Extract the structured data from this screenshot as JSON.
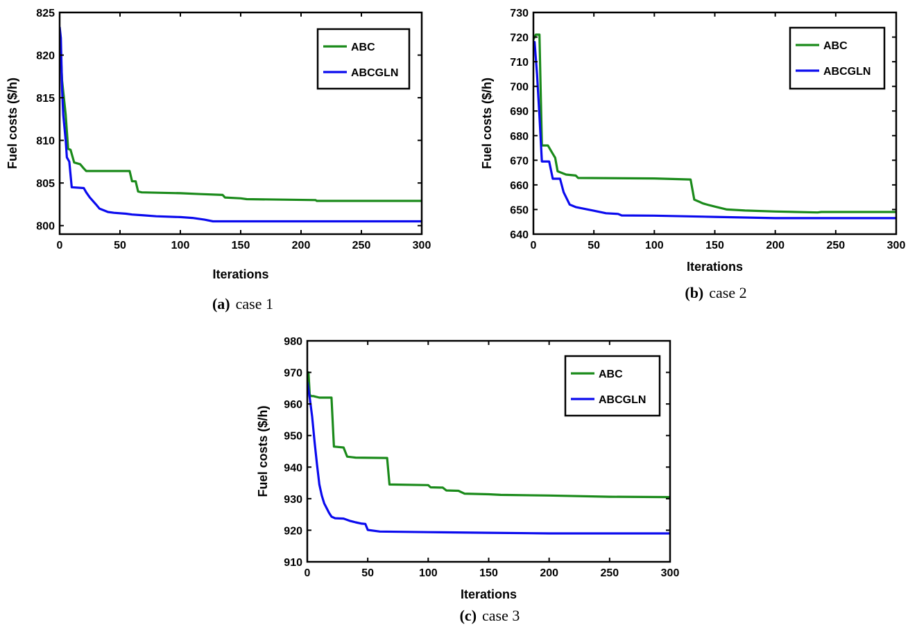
{
  "colors": {
    "abc": "#1a8a1a",
    "abcgln": "#0a0aee"
  },
  "chart_data": [
    {
      "type": "line",
      "caption": {
        "tag": "(a)",
        "text": "case 1"
      },
      "xlabel": "Iterations",
      "ylabel": "Fuel costs ($/h)",
      "xlim": [
        0,
        300
      ],
      "ylim": [
        799,
        825
      ],
      "xticks": [
        0,
        50,
        100,
        150,
        200,
        250,
        300
      ],
      "yticks": [
        800,
        805,
        810,
        815,
        820,
        825
      ],
      "legend": "top-right",
      "series": [
        {
          "name": "ABC",
          "color": "#1a8a1a",
          "x": [
            0,
            2,
            5,
            7,
            9,
            12,
            17,
            20,
            22,
            30,
            58,
            60,
            63,
            65,
            68,
            100,
            117,
            135,
            137,
            150,
            155,
            212,
            213,
            250,
            300
          ],
          "y": [
            823,
            817,
            813,
            809,
            808.9,
            807.4,
            807.2,
            806.7,
            806.4,
            806.4,
            806.4,
            805.2,
            805.2,
            804,
            803.9,
            803.8,
            803.7,
            803.6,
            803.3,
            803.2,
            803.1,
            803.0,
            802.9,
            802.9,
            802.9
          ]
        },
        {
          "name": "ABCGLN",
          "color": "#0a0aee",
          "x": [
            0,
            1,
            2,
            3,
            5,
            6,
            8,
            10,
            20,
            22,
            25,
            30,
            33,
            40,
            45,
            55,
            60,
            70,
            80,
            100,
            110,
            120,
            127,
            150,
            200,
            300
          ],
          "y": [
            823.3,
            822,
            816,
            813,
            810,
            808,
            807.5,
            804.5,
            804.4,
            803.9,
            803.3,
            802.5,
            802.0,
            801.6,
            801.5,
            801.4,
            801.3,
            801.2,
            801.1,
            801.0,
            800.9,
            800.7,
            800.5,
            800.5,
            800.5,
            800.5
          ]
        }
      ]
    },
    {
      "type": "line",
      "caption": {
        "tag": "(b)",
        "text": "case 2"
      },
      "xlabel": "Iterations",
      "ylabel": "Fuel costs ($/h)",
      "xlim": [
        0,
        300
      ],
      "ylim": [
        640,
        730
      ],
      "xticks": [
        0,
        50,
        100,
        150,
        200,
        250,
        300
      ],
      "yticks": [
        640,
        650,
        660,
        670,
        680,
        690,
        700,
        710,
        720,
        730
      ],
      "legend": "top-right",
      "series": [
        {
          "name": "ABC",
          "color": "#1a8a1a",
          "x": [
            0,
            2,
            5,
            7,
            12,
            15,
            18,
            20,
            27,
            35,
            37,
            100,
            130,
            133,
            137,
            140,
            145,
            150,
            160,
            175,
            200,
            235,
            238,
            250,
            300
          ],
          "y": [
            719,
            721,
            721,
            676,
            676,
            673.5,
            671,
            665.5,
            664.2,
            663.8,
            662.8,
            662.6,
            662.2,
            654,
            653.2,
            652.5,
            651.8,
            651.2,
            650,
            649.6,
            649.2,
            648.8,
            649.0,
            649.0,
            649.0
          ]
        },
        {
          "name": "ABCGLN",
          "color": "#0a0aee",
          "x": [
            0,
            1,
            3,
            5,
            7,
            13,
            16,
            22,
            25,
            28,
            30,
            35,
            40,
            50,
            60,
            70,
            73,
            100,
            150,
            200,
            300
          ],
          "y": [
            718,
            718,
            705,
            688,
            669.5,
            669.5,
            662.5,
            662.5,
            657,
            654,
            652,
            651,
            650.5,
            649.5,
            648.5,
            648.2,
            647.6,
            647.5,
            647,
            646.5,
            646.5
          ]
        }
      ]
    },
    {
      "type": "line",
      "caption": {
        "tag": "(c)",
        "text": "case 3"
      },
      "xlabel": "Iterations",
      "ylabel": "Fuel costs ($/h)",
      "xlim": [
        0,
        300
      ],
      "ylim": [
        910,
        980
      ],
      "xticks": [
        0,
        50,
        100,
        150,
        200,
        250,
        300
      ],
      "yticks": [
        910,
        920,
        930,
        940,
        950,
        960,
        970,
        980
      ],
      "legend": "top-right",
      "series": [
        {
          "name": "ABC",
          "color": "#1a8a1a",
          "x": [
            0,
            1,
            2,
            3,
            5,
            10,
            12,
            20,
            22,
            30,
            33,
            40,
            66,
            68,
            100,
            102,
            112,
            115,
            125,
            130,
            150,
            160,
            200,
            250,
            300
          ],
          "y": [
            965,
            970,
            963,
            962.5,
            962.5,
            962,
            962,
            962,
            946.5,
            946.2,
            943.3,
            943,
            942.9,
            934.5,
            934.3,
            933.6,
            933.5,
            932.6,
            932.5,
            931.6,
            931.4,
            931.2,
            931.0,
            930.6,
            930.5
          ]
        },
        {
          "name": "ABCGLN",
          "color": "#0a0aee",
          "x": [
            0,
            2,
            4,
            6,
            8,
            10,
            12,
            14,
            16,
            18,
            20,
            23,
            30,
            35,
            40,
            45,
            48,
            50,
            60,
            100,
            150,
            200,
            300
          ],
          "y": [
            967,
            962,
            956,
            948,
            941,
            934.5,
            931,
            928.5,
            927,
            925.5,
            924.3,
            923.8,
            923.7,
            923.0,
            922.5,
            922.1,
            922.0,
            920.1,
            919.6,
            919.4,
            919.2,
            919.0,
            919.0
          ]
        }
      ]
    }
  ]
}
